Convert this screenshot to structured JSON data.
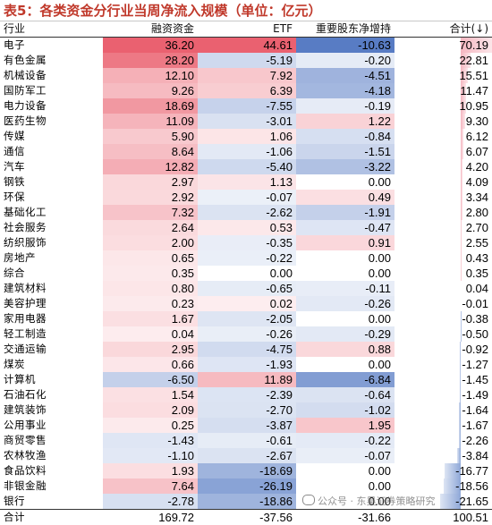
{
  "title": "表5：各类资金分行业当周净流入规模（单位：亿元）",
  "headers": {
    "industry": "行业",
    "margin": "融资资金",
    "etf": "ETF",
    "major_holders": "重要股东净增持",
    "total": "合计(↓)"
  },
  "rows": [
    {
      "name": "电子",
      "margin": "36.20",
      "etf": "44.61",
      "major": "-10.63",
      "total": "70.19"
    },
    {
      "name": "有色金属",
      "margin": "28.20",
      "etf": "-5.19",
      "major": "-0.20",
      "total": "22.81"
    },
    {
      "name": "机械设备",
      "margin": "12.10",
      "etf": "7.92",
      "major": "-4.51",
      "total": "15.51"
    },
    {
      "name": "国防军工",
      "margin": "9.26",
      "etf": "6.39",
      "major": "-4.18",
      "total": "11.47"
    },
    {
      "name": "电力设备",
      "margin": "18.69",
      "etf": "-7.55",
      "major": "-0.19",
      "total": "10.95"
    },
    {
      "name": "医药生物",
      "margin": "11.09",
      "etf": "-3.01",
      "major": "1.22",
      "total": "9.30"
    },
    {
      "name": "传媒",
      "margin": "5.90",
      "etf": "1.06",
      "major": "-0.84",
      "total": "6.12"
    },
    {
      "name": "通信",
      "margin": "8.64",
      "etf": "-1.06",
      "major": "-1.51",
      "total": "6.07"
    },
    {
      "name": "汽车",
      "margin": "12.82",
      "etf": "-5.40",
      "major": "-3.22",
      "total": "4.20"
    },
    {
      "name": "钢铁",
      "margin": "2.97",
      "etf": "1.13",
      "major": "0.00",
      "total": "4.09"
    },
    {
      "name": "环保",
      "margin": "2.92",
      "etf": "-0.07",
      "major": "0.49",
      "total": "3.34"
    },
    {
      "name": "基础化工",
      "margin": "7.32",
      "etf": "-2.62",
      "major": "-1.91",
      "total": "2.80"
    },
    {
      "name": "社会服务",
      "margin": "2.64",
      "etf": "0.53",
      "major": "-0.47",
      "total": "2.70"
    },
    {
      "name": "纺织服饰",
      "margin": "2.00",
      "etf": "-0.35",
      "major": "0.91",
      "total": "2.55"
    },
    {
      "name": "房地产",
      "margin": "0.65",
      "etf": "-0.22",
      "major": "0.00",
      "total": "0.43"
    },
    {
      "name": "综合",
      "margin": "0.35",
      "etf": "0.00",
      "major": "0.00",
      "total": "0.35"
    },
    {
      "name": "建筑材料",
      "margin": "0.80",
      "etf": "-0.65",
      "major": "-0.11",
      "total": "0.04"
    },
    {
      "name": "美容护理",
      "margin": "0.23",
      "etf": "0.02",
      "major": "-0.26",
      "total": "-0.01"
    },
    {
      "name": "家用电器",
      "margin": "1.67",
      "etf": "-2.05",
      "major": "0.00",
      "total": "-0.38"
    },
    {
      "name": "轻工制造",
      "margin": "0.04",
      "etf": "-0.26",
      "major": "-0.29",
      "total": "-0.50"
    },
    {
      "name": "交通运输",
      "margin": "2.95",
      "etf": "-4.75",
      "major": "0.88",
      "total": "-0.92"
    },
    {
      "name": "煤炭",
      "margin": "0.66",
      "etf": "-1.93",
      "major": "0.00",
      "total": "-1.27"
    },
    {
      "name": "计算机",
      "margin": "-6.50",
      "etf": "11.89",
      "major": "-6.84",
      "total": "-1.45"
    },
    {
      "name": "石油石化",
      "margin": "1.54",
      "etf": "-2.39",
      "major": "-0.64",
      "total": "-1.49"
    },
    {
      "name": "建筑装饰",
      "margin": "2.09",
      "etf": "-2.70",
      "major": "-1.02",
      "total": "-1.64"
    },
    {
      "name": "公用事业",
      "margin": "0.25",
      "etf": "-3.87",
      "major": "1.95",
      "total": "-1.67"
    },
    {
      "name": "商贸零售",
      "margin": "-1.43",
      "etf": "-0.61",
      "major": "-0.22",
      "total": "-2.26"
    },
    {
      "name": "农林牧渔",
      "margin": "-1.10",
      "etf": "-2.67",
      "major": "-0.07",
      "total": "-3.84"
    },
    {
      "name": "食品饮料",
      "margin": "1.93",
      "etf": "-18.69",
      "major": "0.00",
      "total": "-16.77"
    },
    {
      "name": "非银金融",
      "margin": "7.64",
      "etf": "-26.19",
      "major": "0.00",
      "total": "-18.56"
    },
    {
      "name": "银行",
      "margin": "-2.78",
      "etf": "-18.86",
      "major": "0.00",
      "total": "-21.65"
    }
  ],
  "sum_row": {
    "name": "合计",
    "margin": "169.72",
    "etf": "-37.56",
    "major": "-31.66",
    "total": "100.51"
  },
  "watermark": "公众号 · 东吴证券策略研究",
  "colors": {
    "title": "#c0392b",
    "positive": "#e06070",
    "negative": "#5a82c8",
    "bar_positive": "#f5b6c0",
    "bar_negative": "#8fa8d8"
  }
}
